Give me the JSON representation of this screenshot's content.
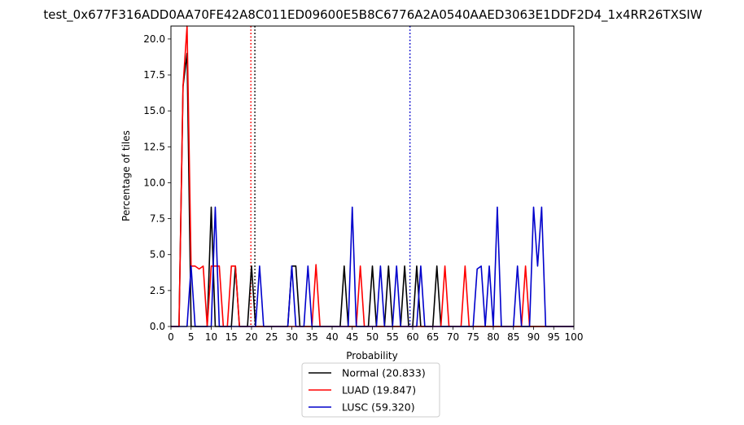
{
  "chart_data": {
    "type": "line",
    "title": "test_0x677F316ADD0AA70FE42A8C011ED09600E5B8C6776A2A0540AAED3063E1DDF2D4_1x4RR26TXSIW",
    "xlabel": "Probability",
    "ylabel": "Percentage of tiles",
    "xlim": [
      0,
      100
    ],
    "ylim": [
      0,
      20.9
    ],
    "x_ticks": [
      0,
      5,
      10,
      15,
      20,
      25,
      30,
      35,
      40,
      45,
      50,
      55,
      60,
      65,
      70,
      75,
      80,
      85,
      90,
      95,
      100
    ],
    "y_ticks": [
      0.0,
      2.5,
      5.0,
      7.5,
      10.0,
      12.5,
      15.0,
      17.5,
      20.0
    ],
    "x_tick_labels": [
      "0",
      "5",
      "10",
      "15",
      "20",
      "25",
      "30",
      "35",
      "40",
      "45",
      "50",
      "55",
      "60",
      "65",
      "70",
      "75",
      "80",
      "85",
      "90",
      "95",
      "100"
    ],
    "y_tick_labels": [
      "0.0",
      "2.5",
      "5.0",
      "7.5",
      "10.0",
      "12.5",
      "15.0",
      "17.5",
      "20.0"
    ],
    "grid": false,
    "legend_placement": "below",
    "series": [
      {
        "name": "Normal (20.833)",
        "color": "#000000",
        "mean": 20.833,
        "points": [
          [
            0,
            0
          ],
          [
            2,
            0
          ],
          [
            3,
            16.7
          ],
          [
            4,
            19.0
          ],
          [
            5,
            0
          ],
          [
            9,
            0
          ],
          [
            10,
            8.3
          ],
          [
            11,
            0
          ],
          [
            15,
            0
          ],
          [
            16,
            4.2
          ],
          [
            17,
            0
          ],
          [
            19,
            0
          ],
          [
            20,
            4.2
          ],
          [
            21,
            0
          ],
          [
            29,
            0
          ],
          [
            30,
            4.2
          ],
          [
            31,
            4.2
          ],
          [
            32,
            0
          ],
          [
            42,
            0
          ],
          [
            43,
            4.2
          ],
          [
            44,
            0
          ],
          [
            49,
            0
          ],
          [
            50,
            4.2
          ],
          [
            51,
            0
          ],
          [
            53,
            0
          ],
          [
            54,
            4.2
          ],
          [
            55,
            0
          ],
          [
            57,
            0
          ],
          [
            58,
            4.2
          ],
          [
            59,
            0
          ],
          [
            60,
            0
          ],
          [
            61,
            4.2
          ],
          [
            62,
            0
          ],
          [
            65,
            0
          ],
          [
            66,
            4.2
          ],
          [
            67,
            0
          ],
          [
            100,
            0
          ]
        ]
      },
      {
        "name": "LUAD (19.847)",
        "color": "#ff0000",
        "mean": 19.847,
        "points": [
          [
            0,
            0
          ],
          [
            2,
            0
          ],
          [
            3,
            16.7
          ],
          [
            4,
            20.9
          ],
          [
            5,
            4.2
          ],
          [
            6,
            4.2
          ],
          [
            7,
            4.0
          ],
          [
            8,
            4.2
          ],
          [
            9,
            0
          ],
          [
            10,
            4.2
          ],
          [
            11,
            4.2
          ],
          [
            12,
            4.2
          ],
          [
            13,
            0
          ],
          [
            14,
            0
          ],
          [
            15,
            4.2
          ],
          [
            16,
            4.2
          ],
          [
            17,
            0
          ],
          [
            35,
            0
          ],
          [
            36,
            4.3
          ],
          [
            37,
            0
          ],
          [
            46,
            0
          ],
          [
            47,
            4.2
          ],
          [
            48,
            0
          ],
          [
            67,
            0
          ],
          [
            68,
            4.2
          ],
          [
            69,
            0
          ],
          [
            72,
            0
          ],
          [
            73,
            4.2
          ],
          [
            74,
            0
          ],
          [
            87,
            0
          ],
          [
            88,
            4.2
          ],
          [
            89,
            0
          ],
          [
            100,
            0
          ]
        ]
      },
      {
        "name": "LUSC (59.320)",
        "color": "#0000cc",
        "mean": 59.32,
        "points": [
          [
            0,
            0
          ],
          [
            4,
            0
          ],
          [
            5,
            4.2
          ],
          [
            6,
            0
          ],
          [
            10,
            0
          ],
          [
            11,
            8.3
          ],
          [
            12,
            0
          ],
          [
            21,
            0
          ],
          [
            22,
            4.2
          ],
          [
            23,
            0
          ],
          [
            29,
            0
          ],
          [
            30,
            4.2
          ],
          [
            31,
            0
          ],
          [
            33,
            0
          ],
          [
            34,
            4.2
          ],
          [
            35,
            0
          ],
          [
            44,
            0
          ],
          [
            45,
            8.3
          ],
          [
            46,
            0
          ],
          [
            51,
            0
          ],
          [
            52,
            4.2
          ],
          [
            53,
            0
          ],
          [
            55,
            0
          ],
          [
            56,
            4.2
          ],
          [
            57,
            0
          ],
          [
            61,
            0
          ],
          [
            62,
            4.2
          ],
          [
            63,
            0
          ],
          [
            75,
            0
          ],
          [
            76,
            4.0
          ],
          [
            77,
            4.2
          ],
          [
            78,
            0
          ],
          [
            79,
            4.2
          ],
          [
            80,
            0
          ],
          [
            81,
            8.3
          ],
          [
            82,
            0
          ],
          [
            85,
            0
          ],
          [
            86,
            4.2
          ],
          [
            87,
            0
          ],
          [
            89,
            0
          ],
          [
            90,
            8.3
          ],
          [
            91,
            4.2
          ],
          [
            92,
            8.3
          ],
          [
            93,
            0
          ],
          [
            100,
            0
          ]
        ]
      }
    ]
  }
}
